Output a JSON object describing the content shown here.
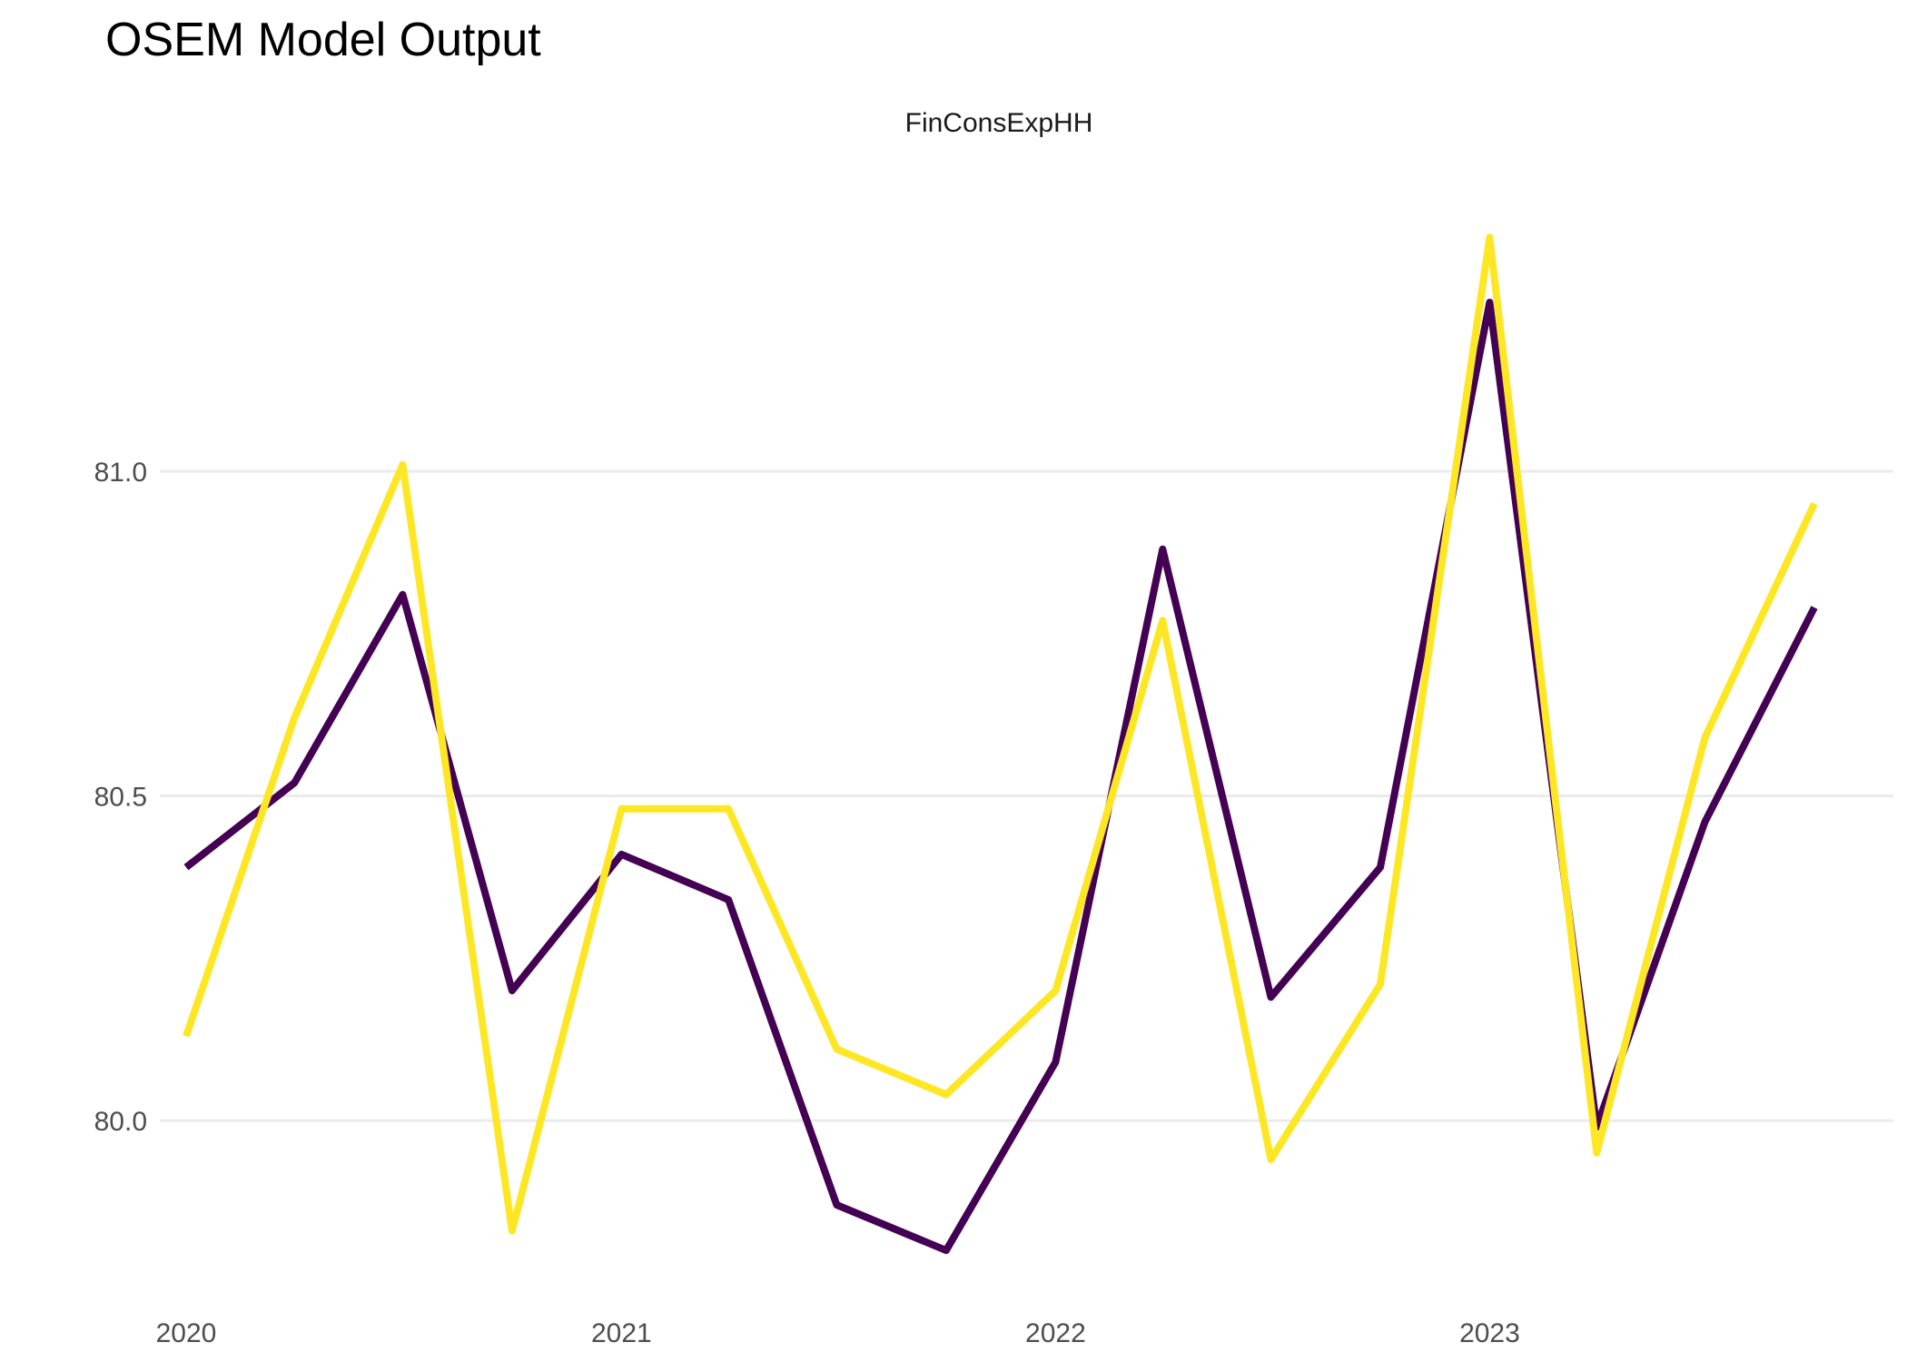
{
  "chart_data": {
    "type": "line",
    "title": "OSEM Model Output",
    "panel_label": "FinConsExpHH",
    "xlabel": "",
    "ylabel": "",
    "x": [
      "2020-01-01",
      "2020-04-01",
      "2020-07-01",
      "2020-10-01",
      "2021-01-01",
      "2021-04-01",
      "2021-07-01",
      "2021-10-01",
      "2022-01-01",
      "2022-04-01",
      "2022-07-01",
      "2022-10-01",
      "2023-01-01",
      "2023-04-01",
      "2023-07-01",
      "2023-10-01"
    ],
    "x_ticks": [
      "2020",
      "2021",
      "2022",
      "2023"
    ],
    "y_ticks": [
      80.0,
      80.5,
      81.0
    ],
    "y_tick_labels": [
      "80.0",
      "80.5",
      "81.0"
    ],
    "ylim": [
      79.74,
      81.46
    ],
    "grid": "horizontal",
    "legend": "none",
    "series": [
      {
        "color": "#440154",
        "values": [
          80.39,
          80.52,
          80.81,
          80.2,
          80.41,
          80.34,
          79.87,
          79.8,
          80.09,
          80.88,
          80.19,
          80.39,
          81.26,
          79.99,
          80.46,
          80.79
        ]
      },
      {
        "color": "#FDE725",
        "values": [
          80.13,
          80.62,
          81.01,
          79.83,
          80.48,
          80.48,
          80.11,
          80.04,
          80.2,
          80.77,
          79.94,
          80.21,
          81.36,
          79.95,
          80.59,
          80.95
        ]
      }
    ]
  }
}
